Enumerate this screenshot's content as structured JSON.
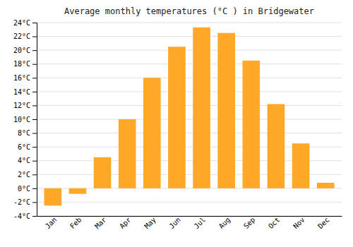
{
  "chart_data": {
    "type": "bar",
    "title": "Average monthly temperatures (°C ) in Bridgewater",
    "categories": [
      "Jan",
      "Feb",
      "Mar",
      "Apr",
      "May",
      "Jun",
      "Jul",
      "Aug",
      "Sep",
      "Oct",
      "Nov",
      "Dec"
    ],
    "values": [
      -2.5,
      -0.8,
      4.5,
      10.0,
      16.0,
      20.5,
      23.3,
      22.5,
      18.5,
      12.2,
      6.5,
      0.8
    ],
    "color": "#FFA726",
    "ylim": [
      -4,
      24
    ],
    "yticks": [
      {
        "value": -4,
        "label": "-4°C"
      },
      {
        "value": -2,
        "label": "-2°C"
      },
      {
        "value": 0,
        "label": "0°C"
      },
      {
        "value": 2,
        "label": "2°C"
      },
      {
        "value": 4,
        "label": "4°C"
      },
      {
        "value": 6,
        "label": "6°C"
      },
      {
        "value": 8,
        "label": "8°C"
      },
      {
        "value": 10,
        "label": "10°C"
      },
      {
        "value": 12,
        "label": "12°C"
      },
      {
        "value": 14,
        "label": "14°C"
      },
      {
        "value": 16,
        "label": "16°C"
      },
      {
        "value": 18,
        "label": "18°C"
      },
      {
        "value": 20,
        "label": "20°C"
      },
      {
        "value": 22,
        "label": "22°C"
      },
      {
        "value": 24,
        "label": "24°C"
      }
    ],
    "grid": true
  }
}
